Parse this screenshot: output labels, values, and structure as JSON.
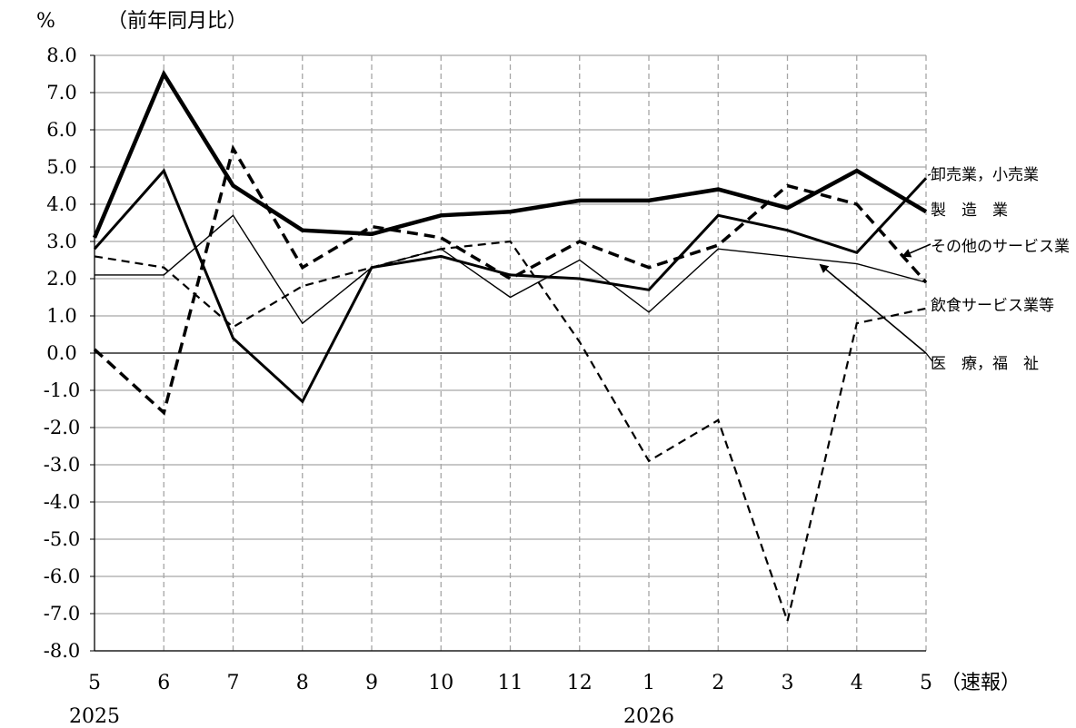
{
  "chart_data": {
    "type": "line",
    "title": "",
    "unit_label": "%",
    "subtitle": "（前年同月比）",
    "xlabel": "",
    "ylabel": "",
    "ylim": [
      -8.0,
      8.0
    ],
    "yticks": [
      "8.0",
      "7.0",
      "6.0",
      "5.0",
      "4.0",
      "3.0",
      "2.0",
      "1.0",
      "0.0",
      "-1.0",
      "-2.0",
      "-3.0",
      "-4.0",
      "-5.0",
      "-6.0",
      "-7.0",
      "-8.0"
    ],
    "categories": [
      "5",
      "6",
      "7",
      "8",
      "9",
      "10",
      "11",
      "12",
      "1",
      "2",
      "3",
      "4",
      "5"
    ],
    "x_suffix_label": "（速報）",
    "year_labels": [
      {
        "label": "2025",
        "index": 0
      },
      {
        "label": "2026",
        "index": 8
      }
    ],
    "grid": {
      "horizontal": true,
      "vertical": true,
      "vertical_style": "dashed"
    },
    "series": [
      {
        "name": "卸売業，小売業",
        "style": "bold-solid",
        "values": [
          3.1,
          7.5,
          4.5,
          3.3,
          3.2,
          3.7,
          3.8,
          4.1,
          4.1,
          4.4,
          3.9,
          4.9,
          3.8
        ]
      },
      {
        "name": "製　造　業",
        "style": "medium-solid",
        "values": [
          2.8,
          4.9,
          0.4,
          -1.3,
          2.3,
          2.6,
          2.1,
          2.0,
          1.7,
          3.7,
          3.3,
          2.7,
          4.7
        ]
      },
      {
        "name": "その他のサービス業",
        "style": "bold-dashed",
        "values": [
          0.1,
          -1.6,
          5.5,
          2.3,
          3.4,
          3.1,
          2.0,
          3.0,
          2.3,
          2.9,
          4.5,
          4.0,
          1.9
        ]
      },
      {
        "name": "飲食サービス業等",
        "style": "thin-dashed",
        "values": [
          2.6,
          2.3,
          0.7,
          1.8,
          2.3,
          2.8,
          3.0,
          0.3,
          -2.9,
          -1.8,
          -7.2,
          0.8,
          1.2
        ]
      },
      {
        "name": "医　療，福　祉",
        "style": "thin-solid",
        "values": [
          2.1,
          2.1,
          3.7,
          0.8,
          2.3,
          2.8,
          1.5,
          2.5,
          1.1,
          2.8,
          2.6,
          2.4,
          1.9
        ]
      }
    ],
    "legend": [
      {
        "label": "卸売業，小売業",
        "pointer": "line"
      },
      {
        "label": "製　造　業",
        "pointer": "none"
      },
      {
        "label": "その他のサービス業",
        "pointer": "arrow"
      },
      {
        "label": "飲食サービス業等",
        "pointer": "none"
      },
      {
        "label": "医　療，福　祉",
        "pointer": "line"
      }
    ]
  }
}
